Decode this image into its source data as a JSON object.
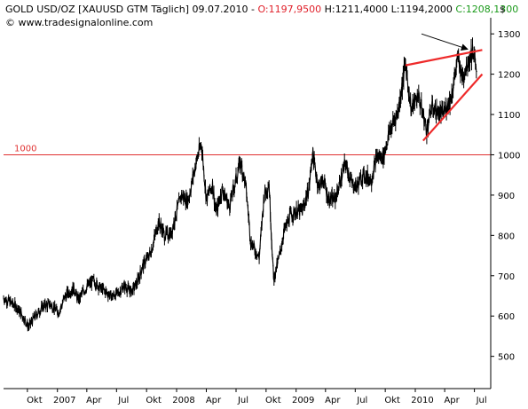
{
  "header": {
    "symbol": "GOLD USD/OZ [XAUUSD GTM  Täglich]",
    "date": "09.07.2010",
    "ohlc": [
      {
        "label": "O:1197,9500",
        "color": "#e0202a"
      },
      {
        "label": "H:1211,4000",
        "color": "#000000"
      },
      {
        "label": "L:1194,2000",
        "color": "#000000"
      },
      {
        "label": "C:1208,1300",
        "color": "#1a9a1a"
      }
    ],
    "watermark": "© www.tradesignalonline.com",
    "currency": "$"
  },
  "colors": {
    "price": "#000000",
    "reference_line": "#e03030",
    "trendline": "#ee2a2a",
    "axis": "#000000"
  },
  "chart_data": {
    "type": "line",
    "title": "GOLD USD/OZ [XAUUSD GTM  Täglich]",
    "ylim": [
      420,
      1340
    ],
    "y_axis_side": "right",
    "grid": false,
    "y_ticks": [
      {
        "value": 500,
        "label": "500"
      },
      {
        "value": 600,
        "label": "600"
      },
      {
        "value": 700,
        "label": "700"
      },
      {
        "value": 800,
        "label": "800"
      },
      {
        "value": 900,
        "label": "900"
      },
      {
        "value": 1000,
        "label": "1000"
      },
      {
        "value": 1100,
        "label": "1100"
      },
      {
        "value": 1200,
        "label": "1200"
      },
      {
        "value": 1300,
        "label": "1300"
      }
    ],
    "xlim": [
      "2006-07-20",
      "2010-08-20"
    ],
    "x_ticks": [
      {
        "date": "2006-10-01",
        "label": "Okt"
      },
      {
        "date": "2007-01-01",
        "label": "2007"
      },
      {
        "date": "2007-04-01",
        "label": "Apr"
      },
      {
        "date": "2007-07-01",
        "label": "Jul"
      },
      {
        "date": "2007-10-01",
        "label": "Okt"
      },
      {
        "date": "2008-01-01",
        "label": "2008"
      },
      {
        "date": "2008-04-01",
        "label": "Apr"
      },
      {
        "date": "2008-07-01",
        "label": "Jul"
      },
      {
        "date": "2008-10-01",
        "label": "Okt"
      },
      {
        "date": "2009-01-01",
        "label": "2009"
      },
      {
        "date": "2009-04-01",
        "label": "Apr"
      },
      {
        "date": "2009-07-01",
        "label": "Jul"
      },
      {
        "date": "2009-10-01",
        "label": "Okt"
      },
      {
        "date": "2010-01-01",
        "label": "2010"
      },
      {
        "date": "2010-04-01",
        "label": "Apr"
      },
      {
        "date": "2010-07-01",
        "label": "Jul"
      }
    ],
    "series": [
      {
        "points": [
          [
            "2006-07-20",
            645
          ],
          [
            "2006-08-10",
            635
          ],
          [
            "2006-09-01",
            620
          ],
          [
            "2006-09-20",
            595
          ],
          [
            "2006-10-05",
            573
          ],
          [
            "2006-10-25",
            600
          ],
          [
            "2006-11-20",
            625
          ],
          [
            "2006-12-10",
            630
          ],
          [
            "2007-01-05",
            608
          ],
          [
            "2007-01-25",
            650
          ],
          [
            "2007-02-20",
            670
          ],
          [
            "2007-03-05",
            640
          ],
          [
            "2007-03-25",
            665
          ],
          [
            "2007-04-20",
            688
          ],
          [
            "2007-05-15",
            668
          ],
          [
            "2007-06-15",
            650
          ],
          [
            "2007-07-05",
            655
          ],
          [
            "2007-07-25",
            675
          ],
          [
            "2007-08-15",
            660
          ],
          [
            "2007-09-01",
            680
          ],
          [
            "2007-09-20",
            725
          ],
          [
            "2007-10-15",
            760
          ],
          [
            "2007-11-07",
            835
          ],
          [
            "2007-11-25",
            800
          ],
          [
            "2007-12-15",
            805
          ],
          [
            "2008-01-15",
            900
          ],
          [
            "2008-02-05",
            885
          ],
          [
            "2008-02-28",
            975
          ],
          [
            "2008-03-17",
            1030
          ],
          [
            "2008-04-01",
            890
          ],
          [
            "2008-04-20",
            925
          ],
          [
            "2008-05-01",
            855
          ],
          [
            "2008-05-20",
            915
          ],
          [
            "2008-06-10",
            870
          ],
          [
            "2008-07-01",
            940
          ],
          [
            "2008-07-15",
            985
          ],
          [
            "2008-08-01",
            915
          ],
          [
            "2008-08-15",
            785
          ],
          [
            "2008-09-10",
            745
          ],
          [
            "2008-09-25",
            900
          ],
          [
            "2008-10-10",
            930
          ],
          [
            "2008-10-24",
            690
          ],
          [
            "2008-11-10",
            745
          ],
          [
            "2008-11-25",
            810
          ],
          [
            "2008-12-15",
            850
          ],
          [
            "2009-01-05",
            860
          ],
          [
            "2009-01-20",
            860
          ],
          [
            "2009-02-10",
            920
          ],
          [
            "2009-02-20",
            1005
          ],
          [
            "2009-03-10",
            920
          ],
          [
            "2009-03-25",
            940
          ],
          [
            "2009-04-10",
            890
          ],
          [
            "2009-05-01",
            890
          ],
          [
            "2009-06-01",
            980
          ],
          [
            "2009-06-20",
            930
          ],
          [
            "2009-07-05",
            920
          ],
          [
            "2009-07-25",
            950
          ],
          [
            "2009-08-20",
            940
          ],
          [
            "2009-09-05",
            995
          ],
          [
            "2009-09-25",
            995
          ],
          [
            "2009-10-15",
            1060
          ],
          [
            "2009-11-10",
            1110
          ],
          [
            "2009-12-02",
            1226
          ],
          [
            "2009-12-20",
            1110
          ],
          [
            "2010-01-10",
            1150
          ],
          [
            "2010-02-05",
            1060
          ],
          [
            "2010-02-20",
            1120
          ],
          [
            "2010-03-10",
            1105
          ],
          [
            "2010-03-25",
            1100
          ],
          [
            "2010-04-20",
            1140
          ],
          [
            "2010-05-12",
            1240
          ],
          [
            "2010-05-25",
            1190
          ],
          [
            "2010-06-10",
            1230
          ],
          [
            "2010-06-28",
            1262
          ],
          [
            "2010-07-07",
            1195
          ],
          [
            "2010-07-09",
            1208
          ]
        ]
      }
    ],
    "reference_lines": [
      {
        "value": 1000,
        "label": "1000"
      }
    ],
    "trendlines": [
      {
        "from": [
          "2009-12-02",
          1222
        ],
        "to": [
          "2010-07-25",
          1260
        ]
      },
      {
        "from": [
          "2010-01-25",
          1035
        ],
        "to": [
          "2010-07-25",
          1200
        ]
      }
    ],
    "annotations": [
      {
        "type": "arrow",
        "from": [
          "2010-01-20",
          1300
        ],
        "to": [
          "2010-06-10",
          1262
        ]
      }
    ]
  }
}
